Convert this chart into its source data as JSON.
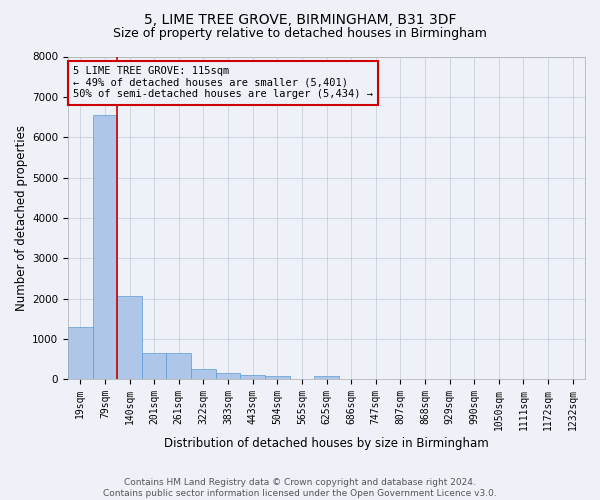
{
  "title": "5, LIME TREE GROVE, BIRMINGHAM, B31 3DF",
  "subtitle": "Size of property relative to detached houses in Birmingham",
  "xlabel": "Distribution of detached houses by size in Birmingham",
  "ylabel": "Number of detached properties",
  "footer_line1": "Contains HM Land Registry data © Crown copyright and database right 2024.",
  "footer_line2": "Contains public sector information licensed under the Open Government Licence v3.0.",
  "annotation_title": "5 LIME TREE GROVE: 115sqm",
  "annotation_line1": "← 49% of detached houses are smaller (5,401)",
  "annotation_line2": "50% of semi-detached houses are larger (5,434) →",
  "bar_color": "#aec6e8",
  "bar_edge_color": "#5b9bd5",
  "bar_edge_width": 0.5,
  "vline_color": "#cc0000",
  "background_color": "#eef2f8",
  "ylim": [
    0,
    8000
  ],
  "yticks": [
    0,
    1000,
    2000,
    3000,
    4000,
    5000,
    6000,
    7000,
    8000
  ],
  "categories": [
    "19sqm",
    "79sqm",
    "140sqm",
    "201sqm",
    "261sqm",
    "322sqm",
    "383sqm",
    "443sqm",
    "504sqm",
    "565sqm",
    "625sqm",
    "686sqm",
    "747sqm",
    "807sqm",
    "868sqm",
    "929sqm",
    "990sqm",
    "1050sqm",
    "1111sqm",
    "1172sqm",
    "1232sqm"
  ],
  "values": [
    1300,
    6550,
    2075,
    650,
    650,
    260,
    145,
    100,
    75,
    0,
    75,
    0,
    0,
    0,
    0,
    0,
    0,
    0,
    0,
    0,
    0
  ],
  "grid_color": "#c8d0e0",
  "title_fontsize": 10,
  "subtitle_fontsize": 9,
  "axis_label_fontsize": 8.5,
  "tick_fontsize": 7,
  "annotation_fontsize": 7.5,
  "footer_fontsize": 6.5
}
